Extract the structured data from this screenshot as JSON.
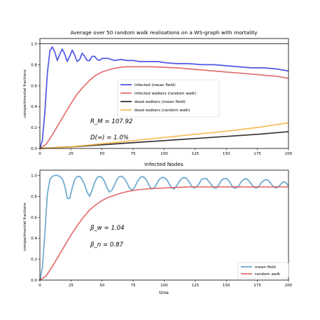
{
  "chart_data": [
    {
      "type": "line",
      "title": "Average over 50 random walk realisations on a WS-graph with mortality",
      "xlabel": "",
      "ylabel": "compartmental fractions",
      "xlim": [
        0,
        200
      ],
      "ylim": [
        0,
        1.05
      ],
      "xticks": [
        "0",
        "25",
        "50",
        "75",
        "100",
        "125",
        "150",
        "175",
        "200"
      ],
      "yticks": [
        "0.0",
        "0.2",
        "0.4",
        "0.6",
        "0.8",
        "1.0"
      ],
      "hline": 1.0,
      "legend_position": "center",
      "annotations": [
        "R_M = 107.92",
        "D(∞) = 1.0%"
      ],
      "series": [
        {
          "name": "infected (mean field)",
          "color": "#3b45e0",
          "x": [
            0,
            2,
            4,
            6,
            8,
            10,
            12,
            14,
            16,
            18,
            20,
            22,
            24,
            26,
            28,
            30,
            32,
            34,
            36,
            38,
            40,
            42,
            44,
            46,
            48,
            50,
            55,
            60,
            65,
            70,
            75,
            80,
            85,
            90,
            95,
            100,
            110,
            120,
            130,
            140,
            150,
            160,
            170,
            180,
            190,
            200
          ],
          "y": [
            0.0,
            0.08,
            0.35,
            0.72,
            0.93,
            0.97,
            0.92,
            0.84,
            0.9,
            0.95,
            0.9,
            0.83,
            0.88,
            0.94,
            0.89,
            0.83,
            0.85,
            0.91,
            0.88,
            0.84,
            0.84,
            0.88,
            0.88,
            0.85,
            0.84,
            0.86,
            0.86,
            0.84,
            0.85,
            0.84,
            0.84,
            0.83,
            0.83,
            0.83,
            0.83,
            0.82,
            0.81,
            0.81,
            0.8,
            0.8,
            0.79,
            0.78,
            0.77,
            0.77,
            0.76,
            0.74
          ]
        },
        {
          "name": "infected walkers  (random walk)",
          "color": "#df5f5f",
          "x": [
            0,
            5,
            10,
            15,
            20,
            25,
            30,
            35,
            40,
            45,
            50,
            55,
            60,
            65,
            70,
            80,
            90,
            100,
            110,
            120,
            130,
            140,
            150,
            160,
            170,
            180,
            190,
            200
          ],
          "y": [
            0.0,
            0.04,
            0.13,
            0.23,
            0.33,
            0.43,
            0.52,
            0.59,
            0.65,
            0.7,
            0.73,
            0.75,
            0.765,
            0.775,
            0.78,
            0.78,
            0.78,
            0.775,
            0.77,
            0.76,
            0.75,
            0.74,
            0.73,
            0.72,
            0.71,
            0.7,
            0.69,
            0.67
          ]
        },
        {
          "name": "dead walkers (mean field)",
          "color": "#1c1c1c",
          "x": [
            0,
            25,
            50,
            75,
            100,
            125,
            150,
            175,
            200
          ],
          "y": [
            0.0,
            0.015,
            0.035,
            0.055,
            0.075,
            0.095,
            0.115,
            0.135,
            0.16
          ]
        },
        {
          "name": "dead walkers (random walk)",
          "color": "#f6b33f",
          "x": [
            0,
            25,
            50,
            75,
            100,
            125,
            150,
            175,
            200
          ],
          "y": [
            0.0,
            0.015,
            0.045,
            0.075,
            0.105,
            0.135,
            0.165,
            0.2,
            0.245
          ]
        }
      ]
    },
    {
      "type": "line",
      "title": "Infected Nodes",
      "xlabel": "time",
      "ylabel": "compartmental fractions",
      "xlim": [
        0,
        200
      ],
      "ylim": [
        0,
        1.05
      ],
      "xticks": [
        "0",
        "25",
        "50",
        "75",
        "100",
        "125",
        "150",
        "175",
        "200"
      ],
      "yticks": [
        "0.0",
        "0.2",
        "0.4",
        "0.6",
        "0.8",
        "1.0"
      ],
      "legend_position": "lower right",
      "annotations": [
        "β_w = 1.04",
        "β_n = 0.87"
      ],
      "series": [
        {
          "name": "mean field",
          "color": "#5b9ec9",
          "x": [
            0,
            2,
            4,
            6,
            8,
            10,
            12,
            14,
            16,
            18,
            20,
            22,
            24,
            26,
            28,
            30,
            32,
            34,
            36,
            38,
            40,
            42,
            44,
            46,
            48,
            50,
            52,
            54,
            56,
            58,
            60,
            62,
            64,
            66,
            68,
            70,
            72,
            74,
            76,
            78,
            80,
            82,
            84,
            86,
            88,
            90,
            92,
            94,
            96,
            98,
            100,
            102,
            104,
            106,
            108,
            110,
            112,
            114,
            116,
            118,
            120,
            122,
            124,
            126,
            128,
            130,
            132,
            134,
            136,
            138,
            140,
            142,
            144,
            146,
            148,
            150,
            152,
            154,
            156,
            158,
            160,
            162,
            164,
            166,
            168,
            170,
            172,
            174,
            176,
            178,
            180,
            182,
            184,
            186,
            188,
            190,
            192,
            194,
            196,
            198,
            200
          ],
          "y": [
            0.0,
            0.12,
            0.45,
            0.82,
            0.96,
            0.99,
            1.0,
            1.0,
            0.99,
            0.97,
            0.9,
            0.78,
            0.78,
            0.88,
            0.96,
            0.99,
            0.99,
            0.96,
            0.91,
            0.84,
            0.8,
            0.86,
            0.93,
            0.98,
            0.99,
            0.98,
            0.94,
            0.88,
            0.84,
            0.86,
            0.91,
            0.96,
            0.99,
            0.99,
            0.97,
            0.93,
            0.88,
            0.86,
            0.88,
            0.93,
            0.97,
            0.99,
            0.98,
            0.95,
            0.9,
            0.87,
            0.88,
            0.92,
            0.96,
            0.98,
            0.98,
            0.96,
            0.92,
            0.88,
            0.87,
            0.9,
            0.94,
            0.97,
            0.98,
            0.97,
            0.94,
            0.9,
            0.88,
            0.89,
            0.92,
            0.96,
            0.97,
            0.97,
            0.94,
            0.91,
            0.88,
            0.88,
            0.91,
            0.95,
            0.97,
            0.97,
            0.95,
            0.91,
            0.88,
            0.88,
            0.9,
            0.94,
            0.96,
            0.97,
            0.95,
            0.92,
            0.89,
            0.88,
            0.89,
            0.93,
            0.95,
            0.96,
            0.95,
            0.92,
            0.89,
            0.88,
            0.89,
            0.92,
            0.94,
            0.93,
            0.9
          ]
        },
        {
          "name": "random walk",
          "color": "#df5f5f",
          "x": [
            0,
            5,
            10,
            15,
            20,
            25,
            30,
            35,
            40,
            45,
            50,
            55,
            60,
            65,
            70,
            75,
            80,
            90,
            100,
            110,
            120,
            130,
            140,
            150,
            160,
            170,
            180,
            190,
            200
          ],
          "y": [
            0.0,
            0.04,
            0.13,
            0.23,
            0.33,
            0.43,
            0.52,
            0.6,
            0.67,
            0.72,
            0.76,
            0.79,
            0.81,
            0.83,
            0.845,
            0.855,
            0.865,
            0.875,
            0.88,
            0.885,
            0.89,
            0.89,
            0.89,
            0.89,
            0.89,
            0.89,
            0.89,
            0.89,
            0.89
          ]
        }
      ]
    }
  ]
}
